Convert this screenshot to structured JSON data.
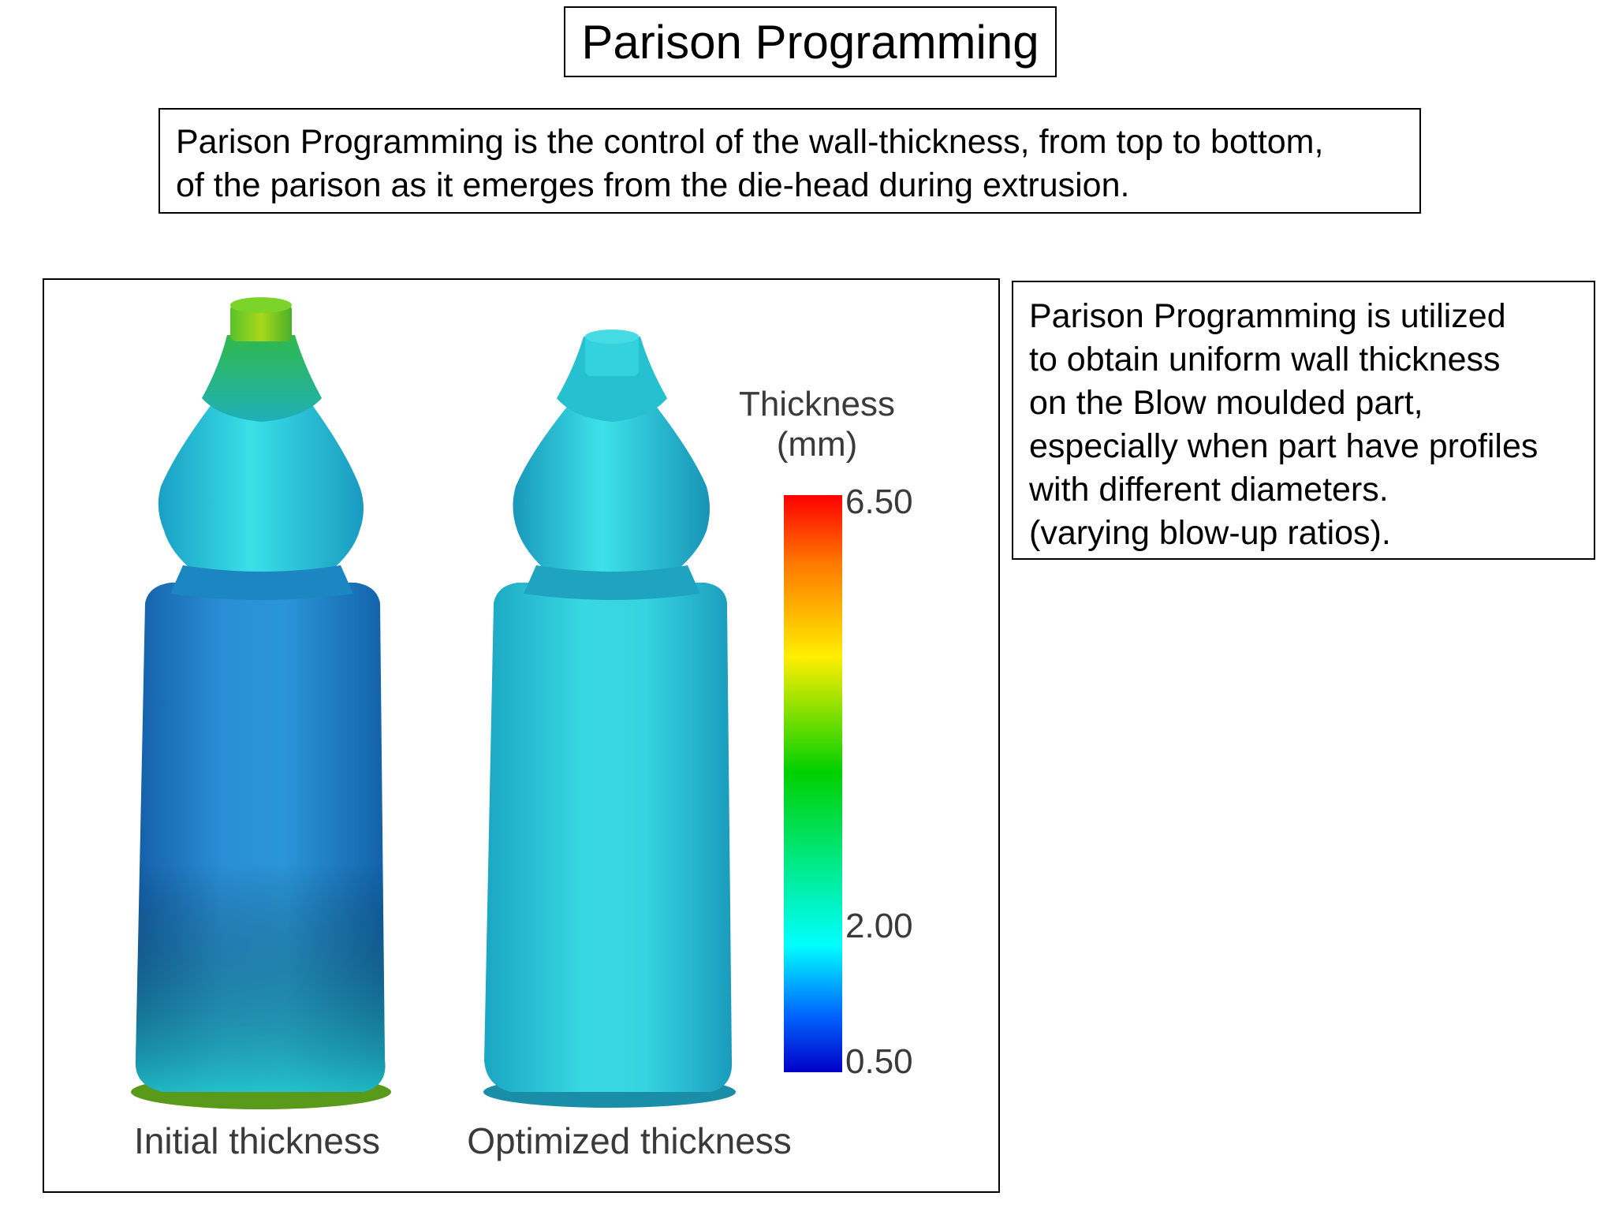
{
  "title": "Parison Programming",
  "definition": {
    "lines": [
      "Parison Programming is the control of the wall-thickness, from top to bottom,",
      "of the parison as it emerges from the die-head during extrusion."
    ]
  },
  "note": {
    "lines": [
      "Parison Programming is utilized",
      "to obtain uniform wall thickness",
      "on the Blow moulded part,",
      "especially when part have profiles",
      "with different diameters.",
      "(varying blow-up ratios)."
    ]
  },
  "figure": {
    "bottles": [
      {
        "label": "Initial thickness"
      },
      {
        "label": "Optimized thickness"
      }
    ],
    "legend": {
      "title_line1": "Thickness",
      "title_line2": "(mm)",
      "ticks": [
        "6.50",
        "2.00",
        "0.50"
      ],
      "colors": {
        "max": "#ff0000",
        "orange": "#ff8800",
        "yellow": "#ffff00",
        "green": "#00cc00",
        "cyan": "#00ffff",
        "blue": "#0044ff",
        "min": "#0000cc"
      }
    },
    "colors": {
      "initial_body": "#1e7fc8",
      "initial_shoulder": "#21c4d4",
      "initial_neck": "#3cbf3c",
      "optimized_body": "#2ad0d8",
      "optimized_neck": "#2bc8d4"
    }
  }
}
